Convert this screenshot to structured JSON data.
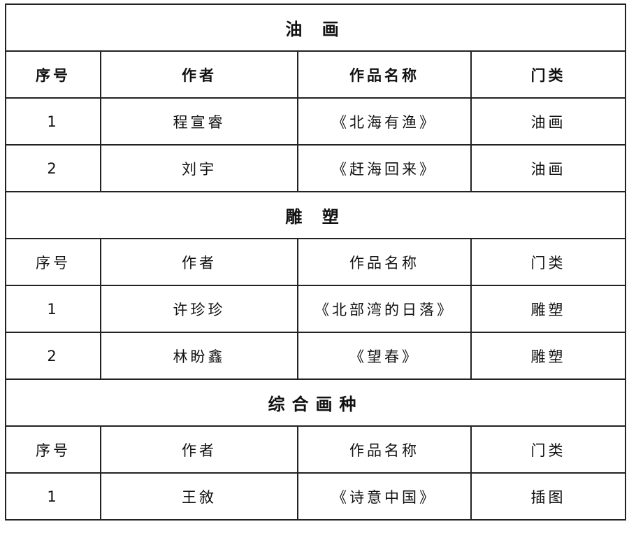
{
  "sections": [
    {
      "title": "油 画",
      "bold_header": true,
      "headers": [
        "序号",
        "作者",
        "作品名称",
        "门类"
      ],
      "rows": [
        [
          "1",
          "程宣睿",
          "《北海有渔》",
          "油画"
        ],
        [
          "2",
          "刘宇",
          "《赶海回来》",
          "油画"
        ]
      ]
    },
    {
      "title": "雕 塑",
      "bold_header": false,
      "headers": [
        "序号",
        "作者",
        "作品名称",
        "门类"
      ],
      "rows": [
        [
          "1",
          "许珍珍",
          "《北部湾的日落》",
          "雕塑"
        ],
        [
          "2",
          "林盼鑫",
          "《望春》",
          "雕塑"
        ]
      ]
    },
    {
      "title": "综合画种",
      "bold_header": false,
      "headers": [
        "序号",
        "作者",
        "作品名称",
        "门类"
      ],
      "rows": [
        [
          "1",
          "王敘",
          "《诗意中国》",
          "插图"
        ]
      ]
    }
  ]
}
